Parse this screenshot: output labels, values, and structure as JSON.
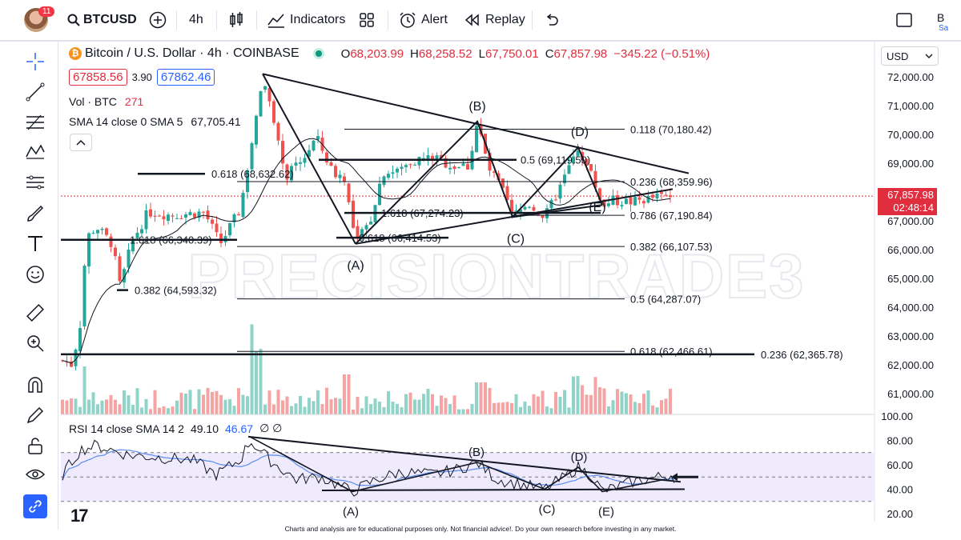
{
  "toolbar": {
    "avatar_badge": "11",
    "symbol": "BTCUSD",
    "interval": "4h",
    "indicators_label": "Indicators",
    "alert_label": "Alert",
    "replay_label": "Replay",
    "right_cut": "B",
    "right_cut2": "Sa"
  },
  "legend": {
    "title": "Bitcoin / U.S. Dollar · 4h · COINBASE",
    "o_label": "O",
    "o": "68,203.99",
    "h_label": "H",
    "h": "68,258.52",
    "l_label": "L",
    "l": "67,750.01",
    "c_label": "C",
    "c": "67,857.98",
    "change": "−345.22 (−0.51%)",
    "bid": "67858.56",
    "spread": "3.90",
    "ask": "67862.46",
    "vol_label": "Vol · BTC",
    "vol_value": "271",
    "sma_label": "SMA 14 close 0 SMA 5",
    "sma_value": "67,705.41"
  },
  "currency": "USD",
  "price_tag": {
    "price": "67,857.98",
    "countdown": "02:48:14"
  },
  "rsi_legend": {
    "label": "RSI 14 close SMA 14 2",
    "value1": "49.10",
    "value2": "46.67",
    "extra": "∅ ∅"
  },
  "footer": "Charts and analysis are for educational purposes only. Not financial advice!. Do your own research before investing in any market.",
  "watermark": "PRECISIONTRADE3",
  "chart_data": {
    "type": "candlestick",
    "price_axis": {
      "labels": [
        "72,000.00",
        "71,000.00",
        "70,000.00",
        "69,000.00",
        "68,000.00",
        "67,000.00",
        "66,000.00",
        "65,000.00",
        "64,000.00",
        "63,000.00",
        "62,000.00",
        "61,000.00"
      ],
      "values": [
        72000,
        71000,
        70000,
        69000,
        68000,
        67000,
        66000,
        65000,
        64000,
        63000,
        62000,
        61000
      ],
      "range": [
        60300,
        72300
      ]
    },
    "rsi_axis": {
      "labels": [
        "100.00",
        "80.00",
        "60.00",
        "40.00",
        "20.00"
      ],
      "values": [
        100,
        80,
        60,
        40,
        20
      ],
      "range": [
        18,
        102
      ],
      "band": [
        30,
        70
      ]
    },
    "fib_levels": [
      {
        "label": "0.118 (70,180.42)",
        "value": 70180.42
      },
      {
        "label": "0.5 (69,119.50)",
        "value": 69119.5
      },
      {
        "label": "0.618 (68,632.62)",
        "value": 68632.62
      },
      {
        "label": "0.236 (68,359.96)",
        "value": 68359.96
      },
      {
        "label": "1.618 (67,274.23)",
        "value": 67274.23
      },
      {
        "label": "0.786 (67,190.84)",
        "value": 67190.84
      },
      {
        "label": "1.618 (66,340.39)",
        "value": 66340.39
      },
      {
        "label": "0.618 (66,414.53)",
        "value": 66414.53
      },
      {
        "label": "0.382 (66,107.53)",
        "value": 66107.53
      },
      {
        "label": "0.382 (64,593.32)",
        "value": 64593.32
      },
      {
        "label": "0.5 (64,287.07)",
        "value": 64287.07
      },
      {
        "label": "0.618 (62,466.61)",
        "value": 62466.61
      },
      {
        "label": "0.236 (62,365.78)",
        "value": 62365.78
      }
    ],
    "pattern_points": [
      {
        "label": "(A)",
        "value": 66200
      },
      {
        "label": "(B)",
        "value": 70450
      },
      {
        "label": "(C)",
        "value": 67130
      },
      {
        "label": "(D)",
        "value": 69550
      },
      {
        "label": "(E)",
        "value": 67550
      }
    ],
    "rsi_points": [
      "(B)",
      "(D)",
      "(A)",
      "(C)",
      "(E)"
    ],
    "colors": {
      "up": "#26a69a",
      "down": "#ef5350",
      "up_vol": "#8fd3c9",
      "down_vol": "#f5a3a3",
      "sma": "#131722",
      "rsi": "#131722",
      "rsi_sma": "#5b8def",
      "band": "#efeafc"
    }
  }
}
